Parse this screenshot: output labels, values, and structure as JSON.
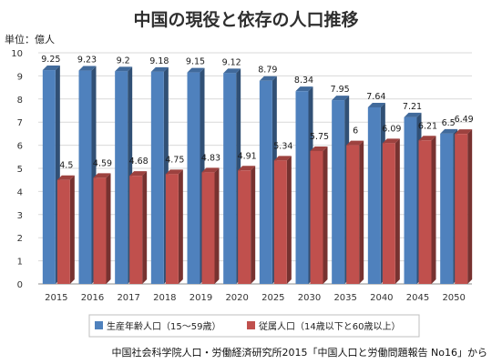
{
  "chart_data": {
    "type": "bar",
    "title": "中国の現役と依存の人口推移",
    "ylabel": "単位：億人",
    "xlabel": "",
    "ylim": [
      0,
      10
    ],
    "yticks": [
      0,
      1,
      2,
      3,
      4,
      5,
      6,
      7,
      8,
      9,
      10
    ],
    "categories": [
      "2015",
      "2016",
      "2017",
      "2018",
      "2019",
      "2020",
      "2025",
      "2030",
      "2035",
      "2040",
      "2045",
      "2050"
    ],
    "series": [
      {
        "name": "生産年齢人口（15〜59歳）",
        "color": "#4f81bd",
        "values": [
          9.25,
          9.23,
          9.2,
          9.18,
          9.15,
          9.12,
          8.79,
          8.34,
          7.95,
          7.64,
          7.21,
          6.5
        ],
        "labels": [
          "9.25",
          "9.23",
          "9.2",
          "9.18",
          "9.15",
          "9.12",
          "8.79",
          "8.34",
          "7.95",
          "7.64",
          "7.21",
          "6.5"
        ]
      },
      {
        "name": "従属人口（14歳以下と60歳以上）",
        "color": "#c0504d",
        "values": [
          4.5,
          4.59,
          4.68,
          4.75,
          4.83,
          4.91,
          5.34,
          5.75,
          6,
          6.09,
          6.21,
          6.49
        ],
        "labels": [
          "4.5",
          "4.59",
          "4.68",
          "4.75",
          "4.83",
          "4.91",
          "5.34",
          "5.75",
          "6",
          "6.09",
          "6.21",
          "6.49"
        ]
      }
    ],
    "grid": true,
    "legend": "bottom",
    "source": "中国社会科学院人口・労働経済研究所2015「中国人口と労働問題報告 No16」から"
  }
}
